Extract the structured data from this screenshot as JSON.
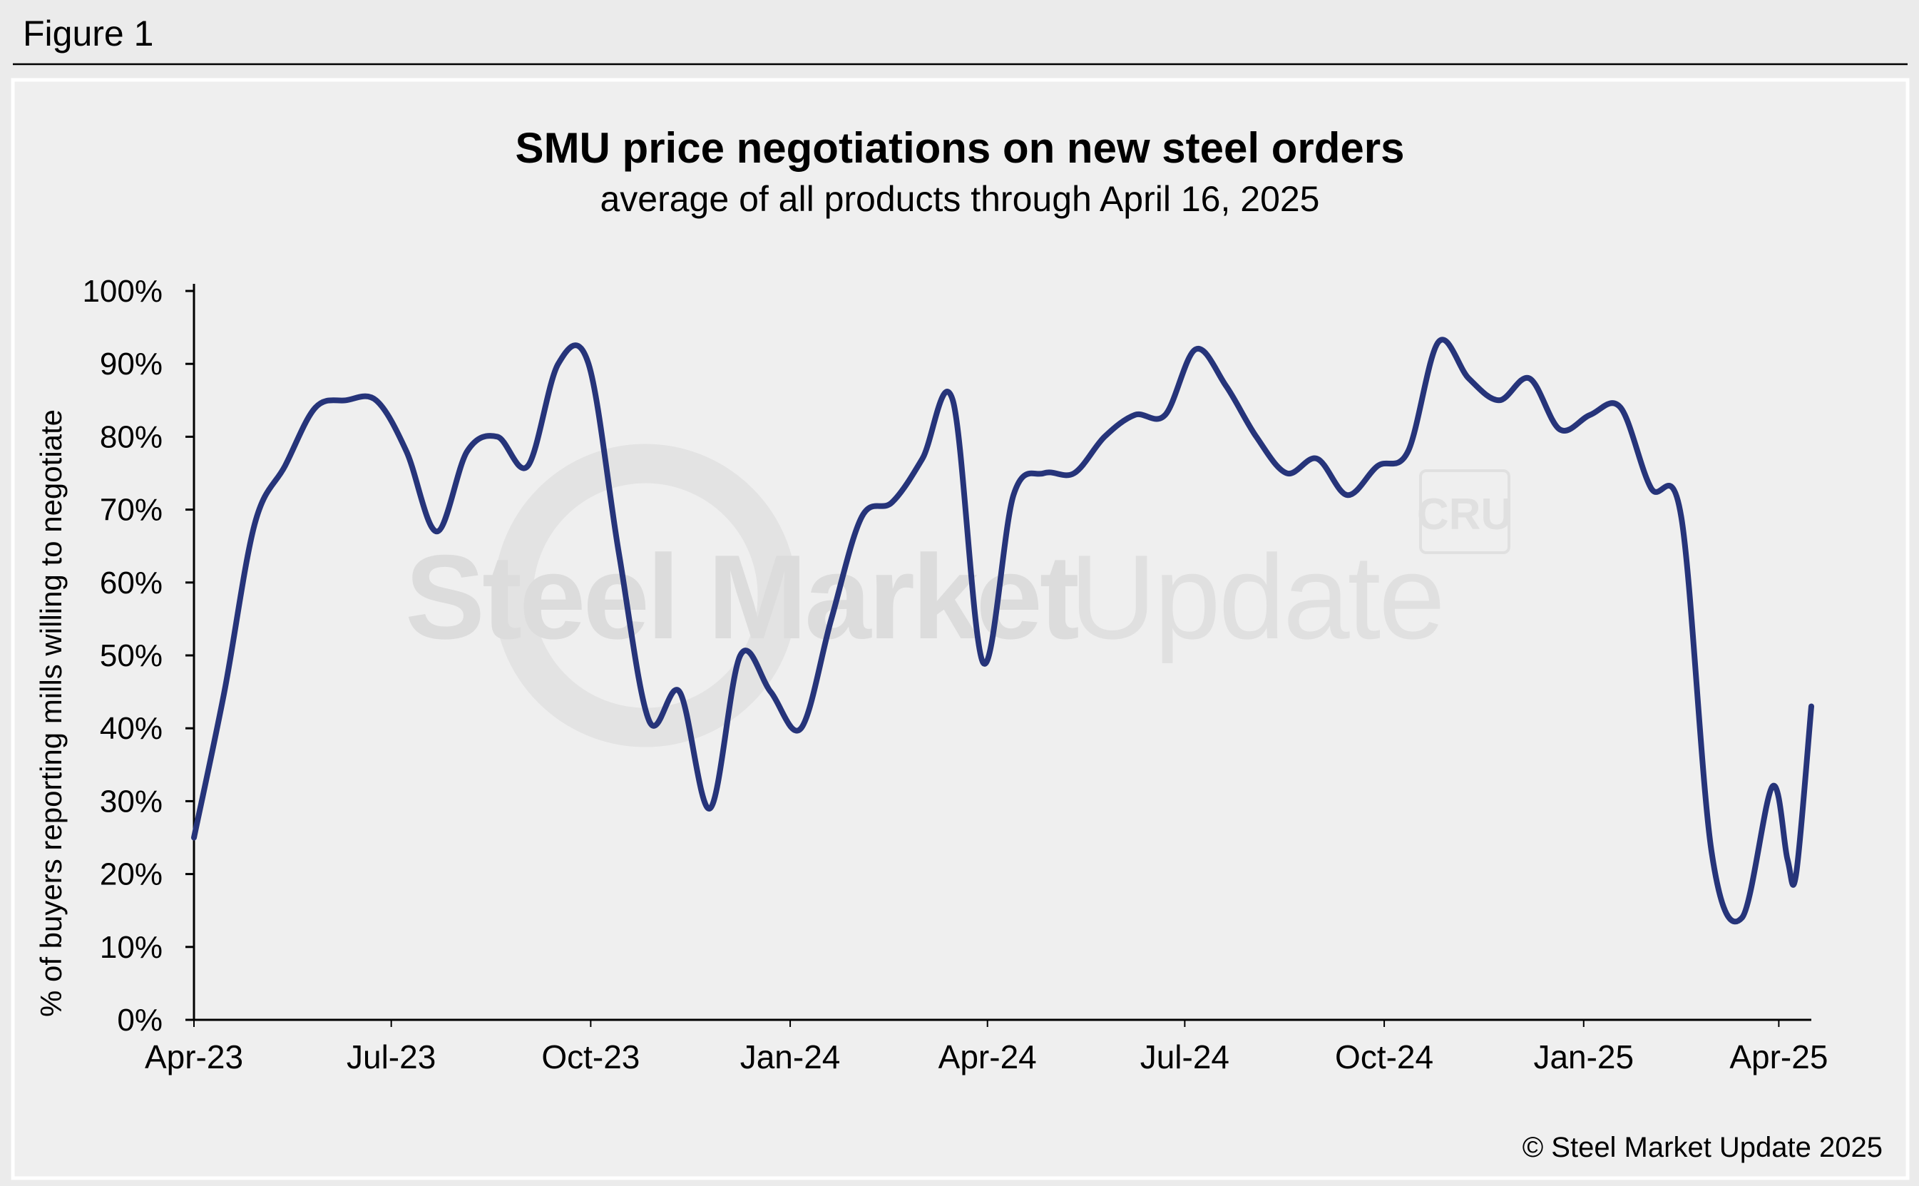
{
  "figure_label": "Figure 1",
  "watermark": {
    "brand_bold": "Steel Market",
    "brand_light": "Update",
    "logo": "CRU"
  },
  "copyright": "© Steel Market Update 2025",
  "colors": {
    "line": "#26347a",
    "panel": "#efefef",
    "page": "#ebebeb",
    "axis": "#000000"
  },
  "chart_data": {
    "type": "line",
    "title": "SMU price negotiations on new steel orders",
    "subtitle": "average of all products through April 16, 2025",
    "ylabel": "% of buyers reporting mills willing to negotiate",
    "xlabel": "",
    "ylim": [
      0,
      100
    ],
    "yticks": [
      "0%",
      "10%",
      "20%",
      "30%",
      "40%",
      "50%",
      "60%",
      "70%",
      "80%",
      "90%",
      "100%"
    ],
    "xlim": [
      "2023-04-01",
      "2025-04-16"
    ],
    "xticks": [
      {
        "label": "Apr-23",
        "date": "2023-04-01"
      },
      {
        "label": "Jul-23",
        "date": "2023-07-01"
      },
      {
        "label": "Oct-23",
        "date": "2023-10-01"
      },
      {
        "label": "Jan-24",
        "date": "2024-01-01"
      },
      {
        "label": "Apr-24",
        "date": "2024-04-01"
      },
      {
        "label": "Jul-24",
        "date": "2024-07-01"
      },
      {
        "label": "Oct-24",
        "date": "2024-10-01"
      },
      {
        "label": "Jan-25",
        "date": "2025-01-01"
      },
      {
        "label": "Apr-25",
        "date": "2025-04-01"
      }
    ],
    "grid": false,
    "legend": "none",
    "series": [
      {
        "points": [
          [
            "2023-04-01",
            25
          ],
          [
            "2023-04-15",
            45
          ],
          [
            "2023-04-29",
            68
          ],
          [
            "2023-05-13",
            76
          ],
          [
            "2023-05-27",
            84
          ],
          [
            "2023-06-10",
            85
          ],
          [
            "2023-06-24",
            85
          ],
          [
            "2023-07-08",
            78
          ],
          [
            "2023-07-22",
            67
          ],
          [
            "2023-08-05",
            78
          ],
          [
            "2023-08-19",
            80
          ],
          [
            "2023-09-02",
            76
          ],
          [
            "2023-09-16",
            90
          ],
          [
            "2023-09-30",
            90
          ],
          [
            "2023-10-14",
            64
          ],
          [
            "2023-10-28",
            41
          ],
          [
            "2023-11-11",
            45
          ],
          [
            "2023-11-25",
            29
          ],
          [
            "2023-12-09",
            50
          ],
          [
            "2023-12-23",
            45
          ],
          [
            "2024-01-06",
            40
          ],
          [
            "2024-01-20",
            55
          ],
          [
            "2024-02-03",
            69
          ],
          [
            "2024-02-17",
            71
          ],
          [
            "2024-03-02",
            77
          ],
          [
            "2024-03-16",
            85
          ],
          [
            "2024-03-30",
            49
          ],
          [
            "2024-04-13",
            72
          ],
          [
            "2024-04-27",
            75
          ],
          [
            "2024-05-11",
            75
          ],
          [
            "2024-05-25",
            80
          ],
          [
            "2024-06-08",
            83
          ],
          [
            "2024-06-22",
            83
          ],
          [
            "2024-07-06",
            92
          ],
          [
            "2024-07-20",
            87
          ],
          [
            "2024-08-03",
            80
          ],
          [
            "2024-08-17",
            75
          ],
          [
            "2024-08-31",
            77
          ],
          [
            "2024-09-14",
            72
          ],
          [
            "2024-09-28",
            76
          ],
          [
            "2024-10-12",
            78
          ],
          [
            "2024-10-26",
            93
          ],
          [
            "2024-11-09",
            88
          ],
          [
            "2024-11-23",
            85
          ],
          [
            "2024-12-07",
            88
          ],
          [
            "2024-12-21",
            81
          ],
          [
            "2025-01-04",
            83
          ],
          [
            "2025-01-18",
            84
          ],
          [
            "2025-02-01",
            73
          ],
          [
            "2025-02-15",
            69
          ],
          [
            "2025-03-01",
            23
          ],
          [
            "2025-03-15",
            14
          ],
          [
            "2025-03-29",
            32
          ],
          [
            "2025-04-05",
            22
          ],
          [
            "2025-04-09",
            20
          ],
          [
            "2025-04-16",
            43
          ]
        ]
      }
    ]
  }
}
